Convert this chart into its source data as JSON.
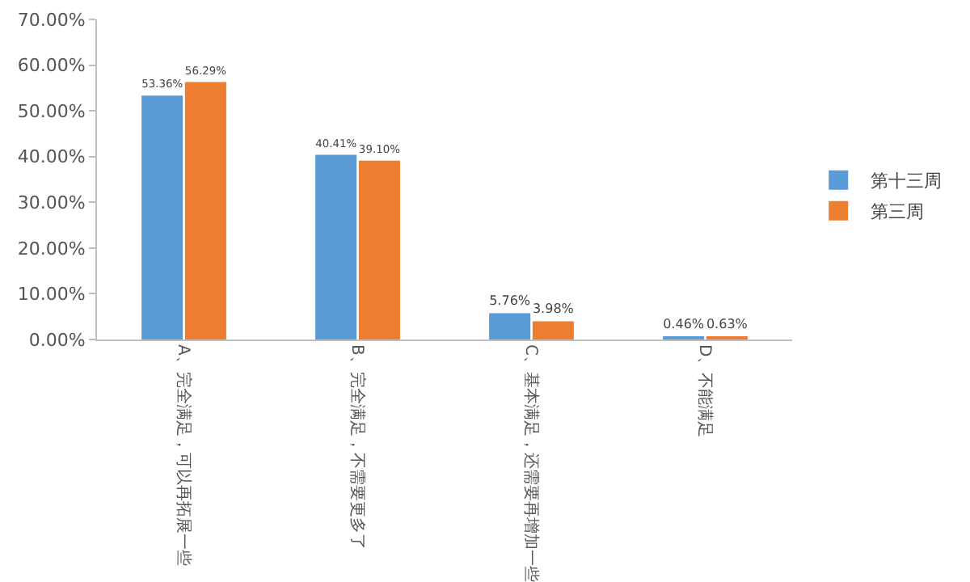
{
  "chart_data": {
    "type": "bar",
    "categories": [
      "A、完全满足，可以再拓展一些",
      "B、完全满足，不需要更多了",
      "C、基本满足，还需要再增加一些",
      "D、不能满足"
    ],
    "series": [
      {
        "name": "第十三周",
        "color": "#5b9bd5",
        "values": [
          53.36,
          40.41,
          5.76,
          0.46
        ],
        "value_labels": [
          "53.36%",
          "40.41%",
          "5.76%",
          "0.46%"
        ]
      },
      {
        "name": "第三周",
        "color": "#ed7d31",
        "values": [
          56.29,
          39.1,
          3.98,
          0.63
        ],
        "value_labels": [
          "56.29%",
          "39.10%",
          "3.98%",
          "0.63%"
        ]
      }
    ],
    "ylim": [
      0,
      70
    ],
    "yticks": [
      {
        "value": 0,
        "label": "0.00%"
      },
      {
        "value": 10,
        "label": "10.00%"
      },
      {
        "value": 20,
        "label": "20.00%"
      },
      {
        "value": 30,
        "label": "30.00%"
      },
      {
        "value": 40,
        "label": "40.00%"
      },
      {
        "value": 50,
        "label": "50.00%"
      },
      {
        "value": 60,
        "label": "60.00%"
      },
      {
        "value": 70,
        "label": "70.00%"
      }
    ],
    "grid": false,
    "legend": "right"
  }
}
